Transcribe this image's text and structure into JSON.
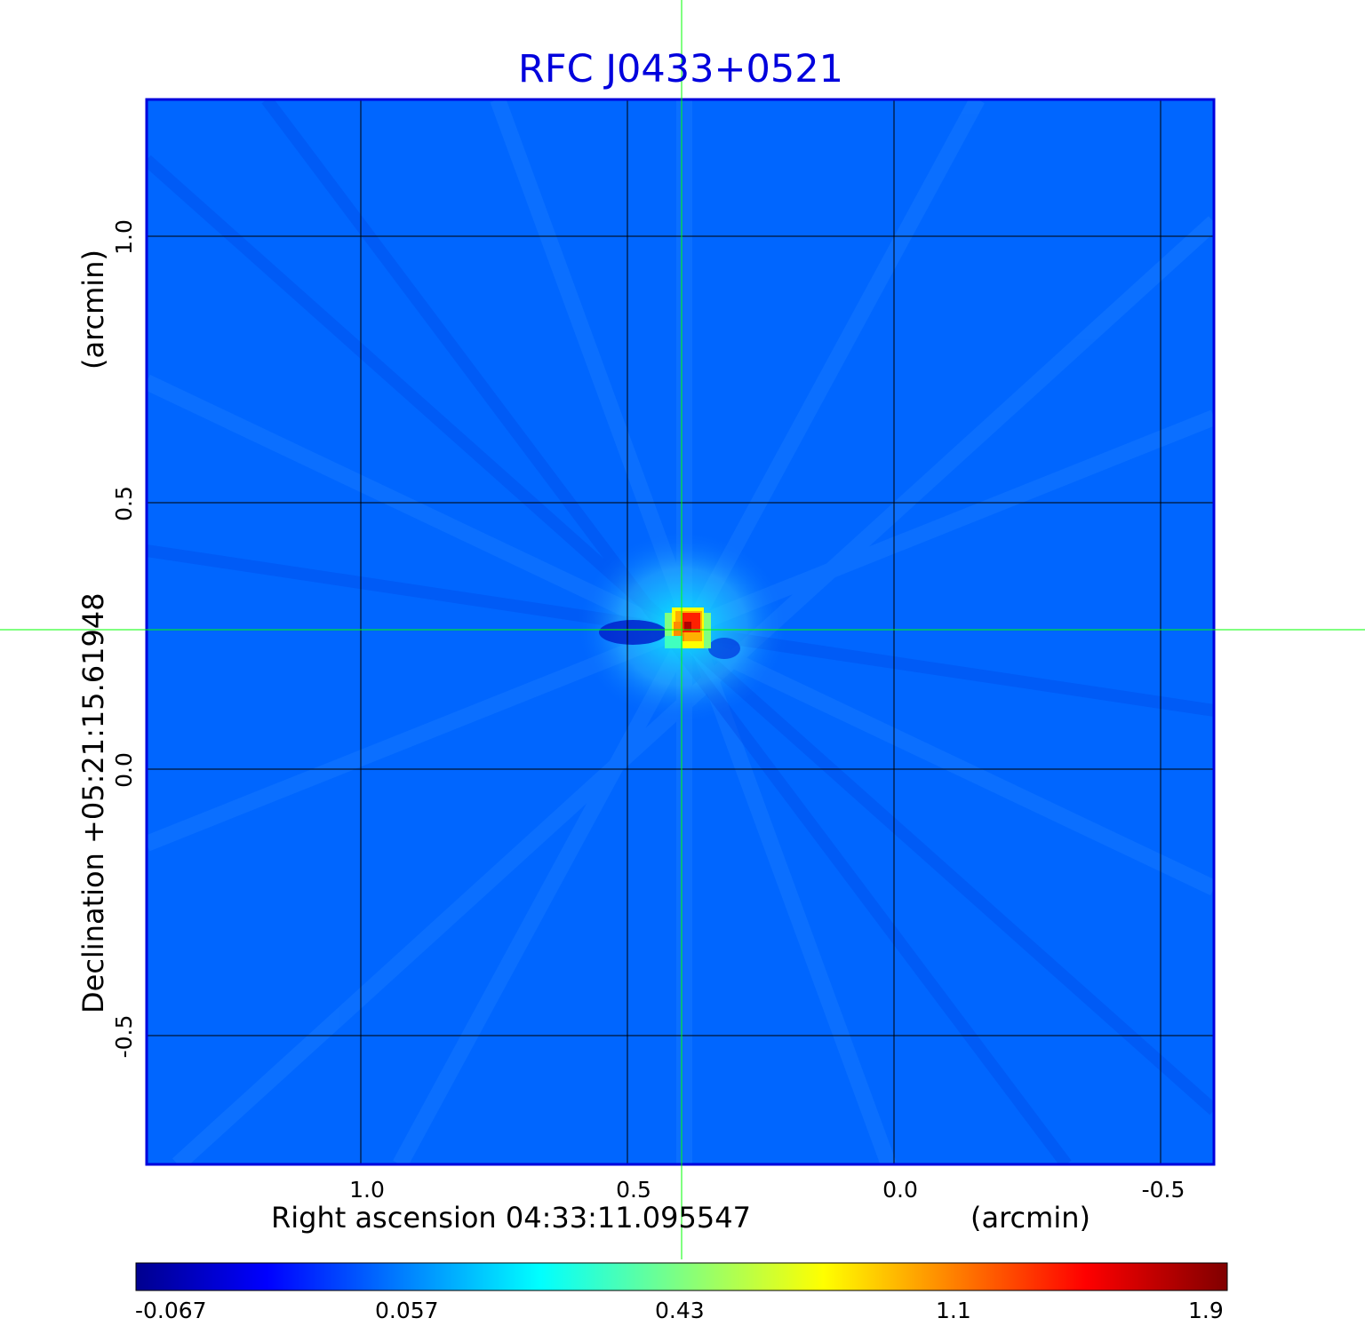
{
  "title": "RFC J0433+0521",
  "x_axis": {
    "label": "Right ascension  04:33:11.095547",
    "unit": "(arcmin)",
    "ticks": [
      "1.0",
      "0.5",
      "0.0",
      "-0.5"
    ]
  },
  "y_axis": {
    "label": "Declination  +05:21:15.61948",
    "unit": "(arcmin)",
    "ticks": [
      "1.0",
      "0.5",
      "0.0",
      "-0.5"
    ]
  },
  "colorbar": {
    "colormap": "jet",
    "ticks": [
      "-0.067",
      "0.057",
      "0.43",
      "1.1",
      "1.9"
    ]
  },
  "colors": {
    "title": "#0000dd",
    "frame": "#0000dd",
    "crosshair": "#00ff00",
    "grid": "#000000",
    "background_map": "#0066ff"
  },
  "chart_data": {
    "type": "heatmap",
    "title": "RFC J0433+0521",
    "xlabel": "Right ascension  04:33:11.095547",
    "ylabel": "Declination  +05:21:15.61948",
    "x_unit": "arcmin",
    "y_unit": "arcmin",
    "xlim": [
      1.4,
      -0.6
    ],
    "ylim": [
      -0.74,
      1.26
    ],
    "x_ticks": [
      1.0,
      0.5,
      0.0,
      -0.5
    ],
    "y_ticks": [
      1.0,
      0.5,
      0.0,
      -0.5
    ],
    "grid": true,
    "colormap": "jet",
    "color_scale_ticks": [
      -0.067,
      0.057,
      0.43,
      1.1,
      1.9
    ],
    "peak": {
      "x": 0.39,
      "y": 0.26,
      "value": 1.9
    },
    "crosshair": {
      "x": 0.4,
      "y": 0.26
    }
  }
}
